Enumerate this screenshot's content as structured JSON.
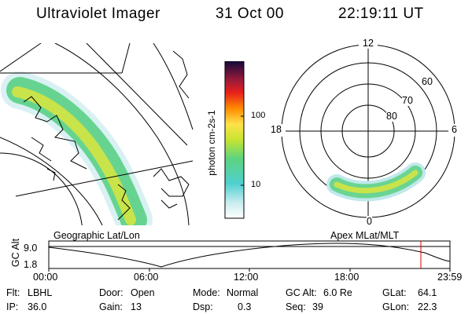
{
  "header": {
    "instrument": "Ultraviolet Imager",
    "date": "31 Oct 00",
    "time": "22:19:11 UT"
  },
  "colorbar": {
    "unit_label": "photon cm-2s-1",
    "ticks": [
      "100",
      "10"
    ]
  },
  "polar_plot": {
    "mlt_labels": {
      "top": "12",
      "left": "18",
      "right": "6",
      "bottom": "0"
    },
    "lat_labels": [
      "60",
      "70",
      "80"
    ]
  },
  "panel_labels": {
    "left": "Geographic Lat/Lon",
    "right": "Apex MLat/MLT"
  },
  "altitude_plot": {
    "axis_label": "GC Alt",
    "ymax": "9.0",
    "ymin": "1.8",
    "time_ticks": [
      "00:00",
      "06:00",
      "12:00",
      "18:00",
      "23:59"
    ],
    "current_time_marker": "22:19"
  },
  "status": {
    "row1": [
      {
        "label": "Flt:",
        "value": "LBHL"
      },
      {
        "label": "Door:",
        "value": "Open"
      },
      {
        "label": "Mode:",
        "value": "Normal"
      },
      {
        "label": "GC Alt:",
        "value": "6.0 Re"
      },
      {
        "label": "GLat:",
        "value": "64.1"
      }
    ],
    "row2": [
      {
        "label": "IP:",
        "value": "36.0"
      },
      {
        "label": "Gain:",
        "value": "13"
      },
      {
        "label": "Dsp:",
        "value": "0.3"
      },
      {
        "label": "Seq:",
        "value": "39"
      },
      {
        "label": "GLon:",
        "value": "22.3"
      }
    ]
  }
}
